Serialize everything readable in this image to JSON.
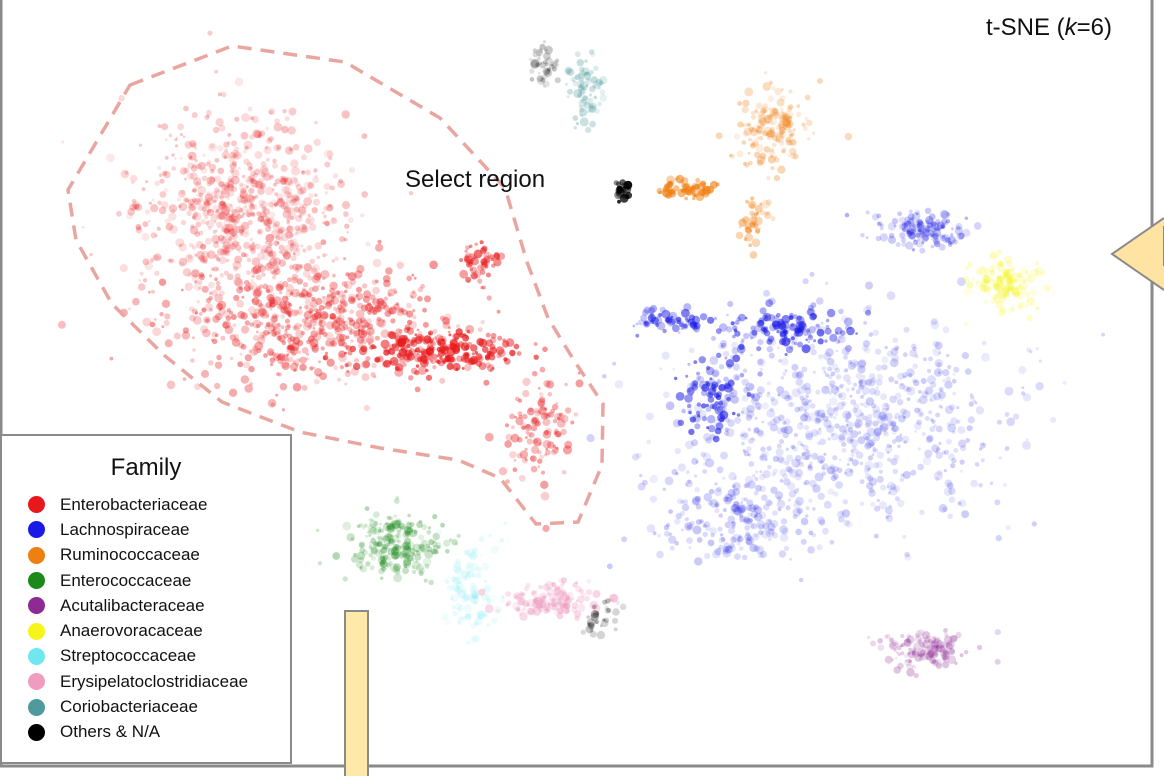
{
  "chart_data": {
    "type": "scatter",
    "title": "t-SNE (k=6)",
    "title_prefix": "t-SNE (",
    "title_k": "k",
    "title_suffix": "=6)",
    "annotation": "Select region",
    "axes_visible": false,
    "grid": false,
    "legend_placement": "bottom-left",
    "legend_title": "Family",
    "series": [
      {
        "name": "Enterobacteriaceae",
        "color": "#e8191c"
      },
      {
        "name": "Lachnospiraceae",
        "color": "#1a1ae6"
      },
      {
        "name": "Ruminococcaceae",
        "color": "#f07f12"
      },
      {
        "name": "Enterococcaceae",
        "color": "#1b8a1b"
      },
      {
        "name": "Acutalibacteraceae",
        "color": "#8e2a93"
      },
      {
        "name": "Anaerovoracaceae",
        "color": "#f5f51a"
      },
      {
        "name": "Streptococcaceae",
        "color": "#6ee8ee"
      },
      {
        "name": "Erysipelatoclostridiaceae",
        "color": "#ee9cc0"
      },
      {
        "name": "Coriobacteriaceae",
        "color": "#4f9a9a"
      },
      {
        "name": "Others & N/A",
        "color": "#000000"
      }
    ]
  }
}
